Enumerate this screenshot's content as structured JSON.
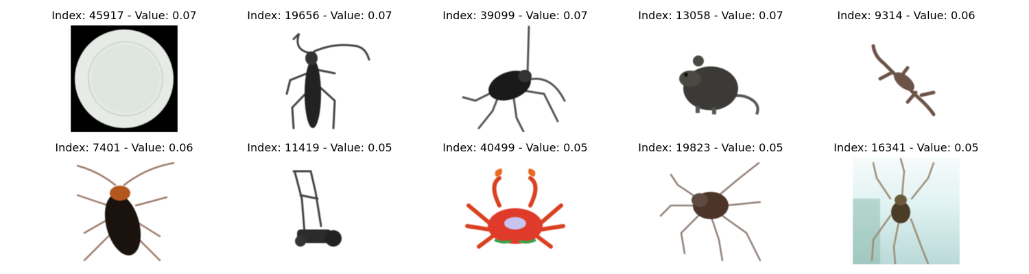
{
  "grid": {
    "items": [
      {
        "index": "45917",
        "value": "0.07",
        "caption": "Index: 45917 - Value: 0.07",
        "subject": "plate-image"
      },
      {
        "index": "19656",
        "value": "0.07",
        "caption": "Index: 19656 - Value: 0.07",
        "subject": "beetle-image"
      },
      {
        "index": "39099",
        "value": "0.07",
        "caption": "Index: 39099 - Value: 0.07",
        "subject": "cricket-image"
      },
      {
        "index": "13058",
        "value": "0.07",
        "caption": "Index: 13058 - Value: 0.07",
        "subject": "mouse-image"
      },
      {
        "index": "9314",
        "value": "0.06",
        "caption": "Index: 9314 - Value: 0.06",
        "subject": "lizard-image"
      },
      {
        "index": "7401",
        "value": "0.06",
        "caption": "Index: 7401 - Value: 0.06",
        "subject": "cockroach-image"
      },
      {
        "index": "11419",
        "value": "0.05",
        "caption": "Index: 11419 - Value: 0.05",
        "subject": "lawn-mower-image"
      },
      {
        "index": "40499",
        "value": "0.05",
        "caption": "Index: 40499 - Value: 0.05",
        "subject": "crab-image"
      },
      {
        "index": "19823",
        "value": "0.05",
        "caption": "Index: 19823 - Value: 0.05",
        "subject": "spider-image"
      },
      {
        "index": "16341",
        "value": "0.05",
        "caption": "Index: 16341 - Value: 0.05",
        "subject": "spider-image"
      }
    ]
  }
}
